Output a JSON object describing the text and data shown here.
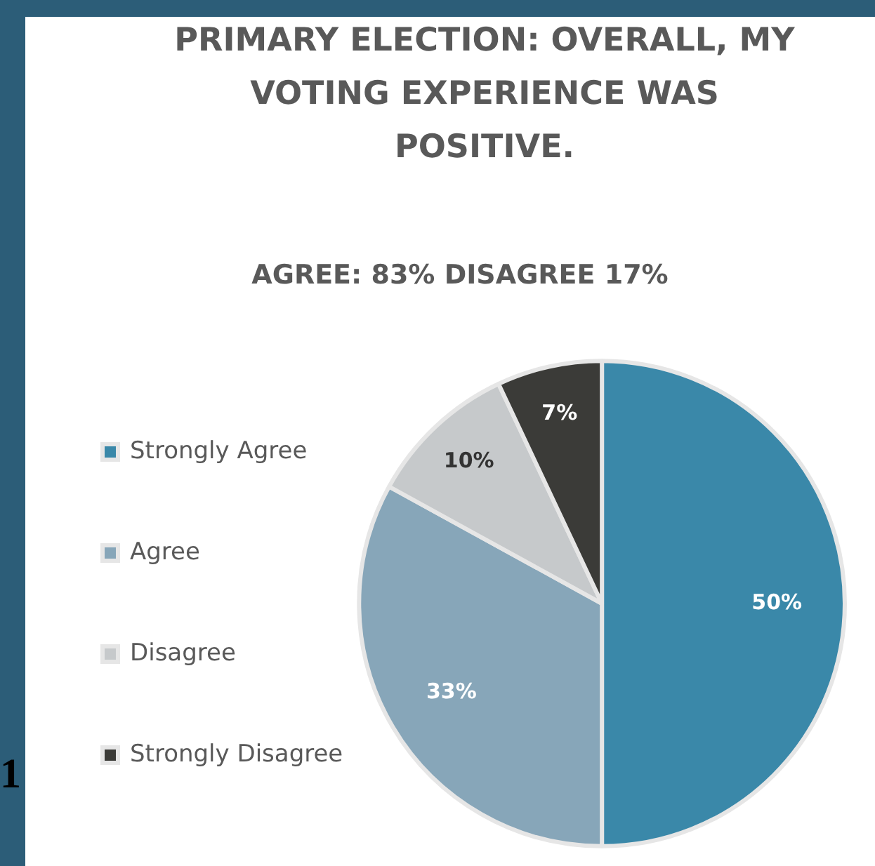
{
  "chart_data": {
    "type": "pie",
    "title": "PRIMARY ELECTION: OVERALL, MY VOTING EXPERIENCE WAS POSITIVE.",
    "subtitle": "AGREE: 83% DISAGREE 17%",
    "categories": [
      "Strongly Agree",
      "Agree",
      "Disagree",
      "Strongly Disagree"
    ],
    "values": [
      50,
      33,
      10,
      7
    ],
    "colors": [
      "#3a88a9",
      "#87a6b9",
      "#c6c9cb",
      "#3b3b38"
    ],
    "value_labels": [
      "50%",
      "33%",
      "10%",
      "7%"
    ],
    "legend": "left",
    "annotations": [
      "1"
    ]
  }
}
